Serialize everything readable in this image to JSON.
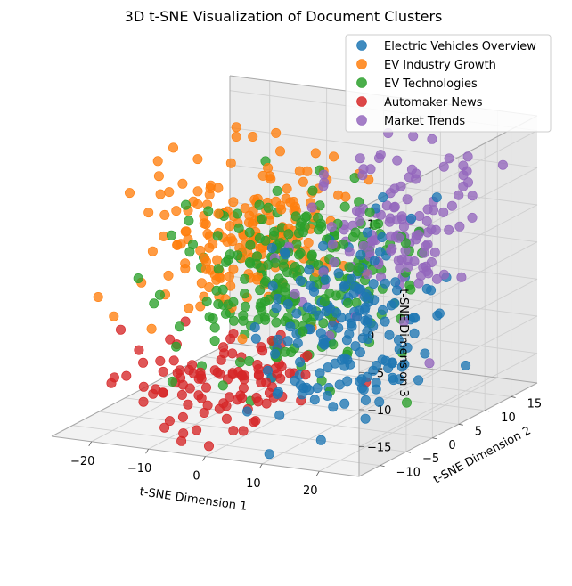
{
  "chart_data": {
    "type": "scatter",
    "projection": "3d",
    "title": "3D t-SNE Visualization of Document Clusters",
    "xlabel": "t-SNE Dimension 1",
    "ylabel": "t-SNE Dimension 2",
    "zlabel": "t-SNE Dimension 3",
    "xlim": [
      -27,
      27
    ],
    "ylim": [
      -14,
      20
    ],
    "zlim": [
      -19,
      17
    ],
    "xticks": [
      -20,
      -10,
      0,
      10,
      20
    ],
    "yticks": [
      -10,
      -5,
      0,
      5,
      10,
      15
    ],
    "zticks": [
      -15,
      -10,
      -5,
      0,
      5,
      10,
      15
    ],
    "grid": true,
    "legend_position": "top-right",
    "series": [
      {
        "name": "Electric Vehicles Overview",
        "color": "#1f77b4",
        "center": [
          14,
          -2,
          -5
        ],
        "spread": [
          6,
          6,
          6
        ],
        "count": 170,
        "points": []
      },
      {
        "name": "EV Industry Growth",
        "color": "#ff7f0e",
        "center": [
          -13,
          8,
          2
        ],
        "spread": [
          7,
          6,
          5
        ],
        "count": 190,
        "points": []
      },
      {
        "name": "EV Technologies",
        "color": "#2ca02c",
        "center": [
          0,
          3,
          -2
        ],
        "spread": [
          8,
          7,
          6
        ],
        "count": 260,
        "points": []
      },
      {
        "name": "Automaker News",
        "color": "#d62728",
        "center": [
          -4,
          -5,
          -13
        ],
        "spread": [
          7,
          5,
          3
        ],
        "count": 110,
        "points": []
      },
      {
        "name": "Market Trends",
        "color": "#9467bd",
        "center": [
          13,
          8,
          5
        ],
        "spread": [
          6,
          5,
          5
        ],
        "count": 130,
        "points": []
      }
    ]
  }
}
